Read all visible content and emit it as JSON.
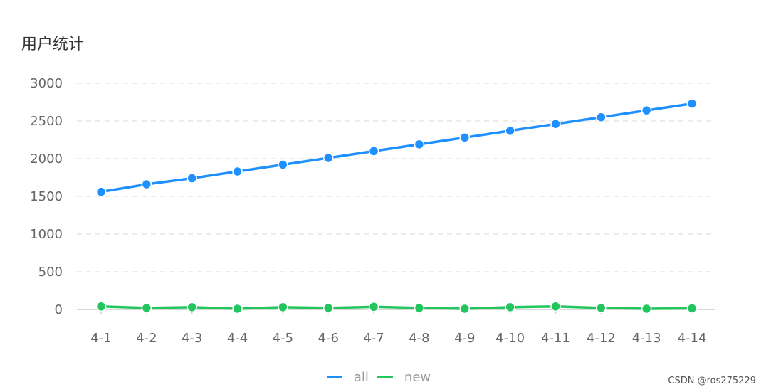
{
  "chart_data": {
    "type": "line",
    "title": "用户统计",
    "categories": [
      "4-1",
      "4-2",
      "4-3",
      "4-4",
      "4-5",
      "4-6",
      "4-7",
      "4-8",
      "4-9",
      "4-10",
      "4-11",
      "4-12",
      "4-13",
      "4-14"
    ],
    "series": [
      {
        "name": "all",
        "color": "#1e90ff",
        "values": [
          1560,
          1660,
          1740,
          1830,
          1920,
          2010,
          2100,
          2190,
          2280,
          2370,
          2460,
          2550,
          2640,
          2730
        ]
      },
      {
        "name": "new",
        "color": "#22c55e",
        "values": [
          40,
          20,
          30,
          10,
          30,
          20,
          35,
          20,
          10,
          30,
          40,
          20,
          10,
          15
        ]
      }
    ],
    "ylim": [
      0,
      3000
    ],
    "yticks": [
      0,
      500,
      1000,
      1500,
      2000,
      2500,
      3000
    ],
    "grid": true,
    "legend_position": "bottom-center"
  },
  "watermark": "CSDN @ros275229"
}
